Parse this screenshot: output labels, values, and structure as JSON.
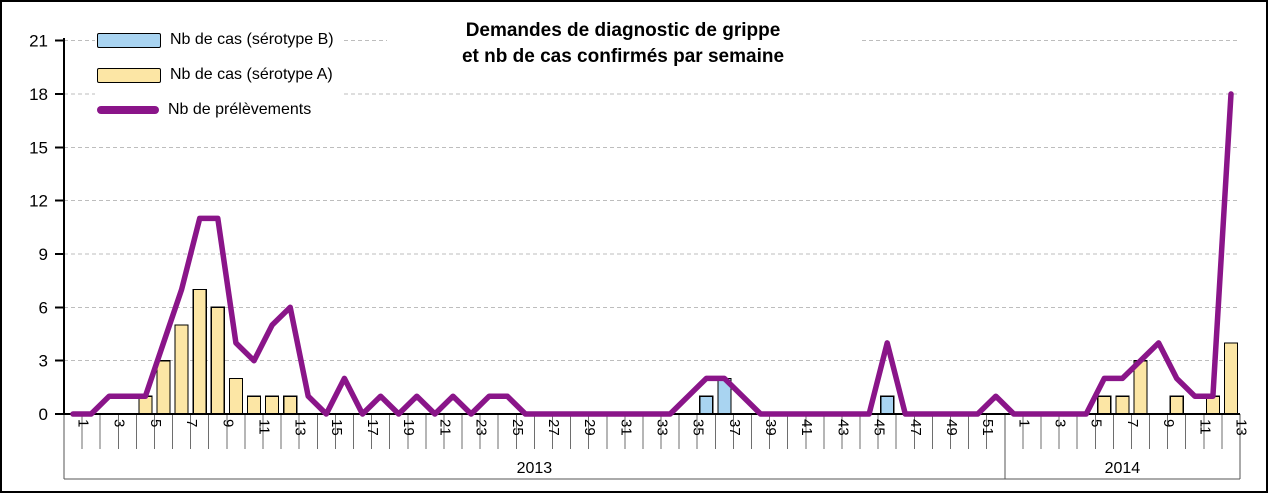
{
  "title": {
    "line1": "Demandes de diagnostic de grippe",
    "line2": "et nb de cas confirmés par semaine"
  },
  "legend": [
    {
      "label": "Nb de cas (sérotype B)",
      "swatch": "bar",
      "color": "#A9D4F1"
    },
    {
      "label": "Nb de cas (sérotype A)",
      "swatch": "bar",
      "color": "#FCE6A5"
    },
    {
      "label": "Nb de prélèvements",
      "swatch": "line",
      "color": "#8A1589"
    }
  ],
  "chart_data": {
    "type": "combo (bar + line)",
    "title": "Demandes de diagnostic de grippe et nb de cas confirmés par semaine",
    "y_axis": {
      "min": 0,
      "max": 21,
      "step": 3,
      "tick_labels": [
        "0",
        "3",
        "6",
        "9",
        "12",
        "15",
        "18",
        "21"
      ],
      "grid": "dashed"
    },
    "x_axis": {
      "unit": "semaine",
      "label_interval": 2,
      "groups": [
        {
          "year": "2013",
          "weeks": 52,
          "week_labels": [
            1,
            3,
            5,
            7,
            9,
            11,
            13,
            15,
            17,
            19,
            21,
            23,
            25,
            27,
            29,
            31,
            33,
            35,
            37,
            39,
            41,
            43,
            45,
            47,
            49,
            51
          ]
        },
        {
          "year": "2014",
          "weeks": 13,
          "week_labels": [
            1,
            3,
            5,
            7,
            9,
            11,
            13
          ]
        }
      ]
    },
    "series": [
      {
        "name": "Nb de cas (sérotype A)",
        "type": "bar",
        "color": "#FCE6A5",
        "values": {
          "2013": [
            0,
            0,
            0,
            0,
            1,
            3,
            5,
            7,
            6,
            2,
            1,
            1,
            1,
            0,
            0,
            0,
            0,
            0,
            0,
            0,
            0,
            0,
            0,
            0,
            0,
            0,
            0,
            0,
            0,
            0,
            0,
            0,
            0,
            0,
            0,
            0,
            0,
            0,
            0,
            0,
            0,
            0,
            0,
            0,
            0,
            0,
            0,
            0,
            0,
            0,
            0,
            0
          ],
          "2014": [
            0,
            0,
            0,
            0,
            0,
            1,
            1,
            3,
            0,
            1,
            0,
            1,
            4
          ]
        }
      },
      {
        "name": "Nb de cas (sérotype B)",
        "type": "bar",
        "color": "#A9D4F1",
        "values": {
          "2013": [
            0,
            0,
            0,
            0,
            0,
            0,
            0,
            0,
            0,
            0,
            0,
            0,
            0,
            0,
            0,
            0,
            0,
            0,
            0,
            0,
            0,
            0,
            0,
            0,
            0,
            0,
            0,
            0,
            0,
            0,
            0,
            0,
            0,
            0,
            0,
            1,
            2,
            0,
            0,
            0,
            0,
            0,
            0,
            0,
            0,
            1,
            0,
            0,
            0,
            0,
            0,
            0
          ],
          "2014": [
            0,
            0,
            0,
            0,
            0,
            0,
            0,
            0,
            0,
            0,
            0,
            0,
            0
          ]
        }
      },
      {
        "name": "Nb de prélèvements",
        "type": "line",
        "color": "#8A1589",
        "values": {
          "2013": [
            0,
            0,
            1,
            1,
            1,
            4,
            7,
            11,
            11,
            4,
            3,
            5,
            6,
            1,
            0,
            2,
            0,
            1,
            0,
            1,
            0,
            1,
            0,
            1,
            1,
            0,
            0,
            0,
            0,
            0,
            0,
            0,
            0,
            0,
            1,
            2,
            2,
            1,
            0,
            0,
            0,
            0,
            0,
            0,
            0,
            4,
            0,
            0,
            0,
            0,
            0,
            1
          ],
          "2014": [
            0,
            0,
            0,
            0,
            0,
            2,
            2,
            3,
            4,
            2,
            1,
            1,
            18
          ]
        }
      }
    ]
  }
}
